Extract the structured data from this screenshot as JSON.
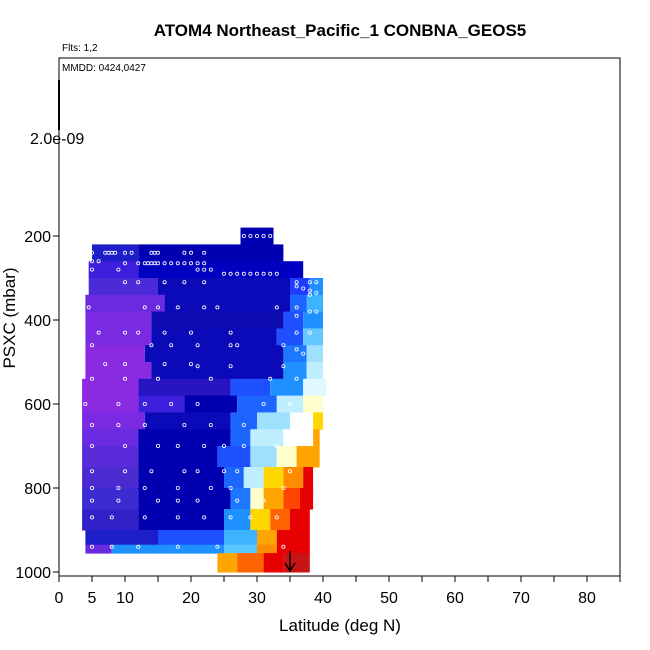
{
  "chart_data": {
    "type": "heatmap",
    "title": "ATOM4 Northeast_Pacific_1 CONBNA_GEOS5",
    "flights_label": "Flts: 1,2",
    "dates_label": "MMDD: 0424,0427",
    "scale_label": "2.0e-09",
    "xlabel": "Latitude (deg N)",
    "ylabel": "PSXC (mbar)",
    "xlim": [
      0,
      85
    ],
    "ylim": [
      1000,
      0
    ],
    "x_ticks": [
      0,
      5,
      10,
      20,
      30,
      40,
      50,
      60,
      70,
      80
    ],
    "y_ticks": [
      200,
      400,
      600,
      800,
      1000
    ],
    "colors": {
      "violet": "#8a2be2",
      "dark_blue": "#0000b0",
      "blue": "#1e3cff",
      "light_blue": "#1e90ff",
      "cyan": "#bfefff",
      "white": "#ffffff",
      "yellow": "#ffd700",
      "orange": "#ff8c00",
      "red": "#e60000",
      "dark_red": "#a01010"
    },
    "rows": [
      {
        "p": [
          180,
          220
        ],
        "segs": [
          [
            27.5,
            32.5,
            "#0000b0"
          ]
        ]
      },
      {
        "p": [
          220,
          260
        ],
        "segs": [
          [
            5,
            12,
            "#1e1ec8"
          ],
          [
            12,
            34,
            "#0000b0"
          ]
        ]
      },
      {
        "p": [
          260,
          300
        ],
        "segs": [
          [
            4.5,
            12,
            "#3c1edc"
          ],
          [
            12,
            37,
            "#0000c0"
          ]
        ]
      },
      {
        "p": [
          300,
          340
        ],
        "segs": [
          [
            4.5,
            15,
            "#4b2bd8"
          ],
          [
            15,
            35,
            "#0a0ab8"
          ],
          [
            35,
            38,
            "#1e3cff"
          ],
          [
            38,
            40,
            "#1e90ff"
          ]
        ]
      },
      {
        "p": [
          340,
          380
        ],
        "segs": [
          [
            4,
            16,
            "#6a2be0"
          ],
          [
            16,
            35,
            "#0a0ab8"
          ],
          [
            35,
            37.5,
            "#1e64ff"
          ],
          [
            37.5,
            40,
            "#3cb4ff"
          ]
        ]
      },
      {
        "p": [
          380,
          420
        ],
        "segs": [
          [
            4,
            14,
            "#7a2be2"
          ],
          [
            14,
            34,
            "#0c0cb0"
          ],
          [
            34,
            37,
            "#1e50ff"
          ],
          [
            37,
            40,
            "#1e90ff"
          ]
        ]
      },
      {
        "p": [
          420,
          460
        ],
        "segs": [
          [
            4,
            14,
            "#7a2be2"
          ],
          [
            14,
            33,
            "#0a0ab8"
          ],
          [
            33,
            37,
            "#1e50ff"
          ],
          [
            37,
            40,
            "#64c8ff"
          ]
        ]
      },
      {
        "p": [
          460,
          500
        ],
        "segs": [
          [
            4,
            13,
            "#8a2be2"
          ],
          [
            13,
            34,
            "#0a0ab8"
          ],
          [
            34,
            37.5,
            "#1e78ff"
          ],
          [
            37.5,
            40,
            "#a0e0ff"
          ]
        ]
      },
      {
        "p": [
          500,
          540
        ],
        "segs": [
          [
            4,
            14,
            "#8a2be2"
          ],
          [
            14,
            34,
            "#0a0ab8"
          ],
          [
            34,
            37.5,
            "#1e90ff"
          ],
          [
            37.5,
            40,
            "#bfefff"
          ]
        ]
      },
      {
        "p": [
          540,
          580
        ],
        "segs": [
          [
            3.5,
            12,
            "#8a2be2"
          ],
          [
            12,
            26,
            "#2814c0"
          ],
          [
            26,
            32,
            "#1e50ff"
          ],
          [
            32,
            37,
            "#1e90ff"
          ],
          [
            37,
            40.5,
            "#e0f8ff"
          ]
        ]
      },
      {
        "p": [
          580,
          620
        ],
        "segs": [
          [
            3.5,
            12,
            "#8a2be2"
          ],
          [
            12,
            19,
            "#3c1edc"
          ],
          [
            19,
            27,
            "#0000b0"
          ],
          [
            27,
            33,
            "#1e64ff"
          ],
          [
            33,
            37,
            "#bfefff"
          ],
          [
            37,
            40,
            "#ffffcc"
          ]
        ]
      },
      {
        "p": [
          620,
          660
        ],
        "segs": [
          [
            3.5,
            13,
            "#7a2be2"
          ],
          [
            13,
            26,
            "#0a0ab8"
          ],
          [
            26,
            30,
            "#1e64ff"
          ],
          [
            30,
            35,
            "#a0e0ff"
          ],
          [
            35,
            38.5,
            "#ffffff"
          ],
          [
            38.5,
            40,
            "#ffd700"
          ]
        ]
      },
      {
        "p": [
          660,
          700
        ],
        "segs": [
          [
            3.5,
            12,
            "#6a2be0"
          ],
          [
            12,
            26,
            "#0000b0"
          ],
          [
            26,
            29,
            "#1e64ff"
          ],
          [
            29,
            34,
            "#bfefff"
          ],
          [
            34,
            38.5,
            "#ffffff"
          ],
          [
            38.5,
            39.5,
            "#ffa500"
          ]
        ]
      },
      {
        "p": [
          700,
          750
        ],
        "segs": [
          [
            3.5,
            12,
            "#5a2bd8"
          ],
          [
            12,
            24,
            "#0000b0"
          ],
          [
            24,
            29,
            "#1e50ff"
          ],
          [
            29,
            33,
            "#a0e0ff"
          ],
          [
            33,
            36,
            "#ffffcc"
          ],
          [
            36,
            39.5,
            "#ffa500"
          ]
        ]
      },
      {
        "p": [
          750,
          800
        ],
        "segs": [
          [
            3.5,
            12,
            "#4a2bd0"
          ],
          [
            12,
            25,
            "#0000b0"
          ],
          [
            25,
            28,
            "#1e64ff"
          ],
          [
            28,
            31,
            "#bfefff"
          ],
          [
            31,
            34,
            "#ffd700"
          ],
          [
            34,
            37,
            "#ff8c00"
          ],
          [
            37,
            38.5,
            "#e60000"
          ]
        ]
      },
      {
        "p": [
          800,
          850
        ],
        "segs": [
          [
            3.5,
            12,
            "#3c2bd0"
          ],
          [
            12,
            26,
            "#0000b0"
          ],
          [
            26,
            29,
            "#1e78ff"
          ],
          [
            29,
            31,
            "#ffffcc"
          ],
          [
            31,
            34,
            "#ffa500"
          ],
          [
            34,
            36.5,
            "#ff4500"
          ],
          [
            36.5,
            38.5,
            "#e60000"
          ]
        ]
      },
      {
        "p": [
          850,
          900
        ],
        "segs": [
          [
            3.5,
            12,
            "#3220c8"
          ],
          [
            12,
            25,
            "#0000b0"
          ],
          [
            25,
            29,
            "#1e90ff"
          ],
          [
            29,
            32,
            "#ffd700"
          ],
          [
            32,
            35,
            "#ff6400"
          ],
          [
            35,
            38,
            "#e60000"
          ]
        ]
      },
      {
        "p": [
          900,
          935
        ],
        "segs": [
          [
            4,
            15,
            "#1e1ec8"
          ],
          [
            15,
            25,
            "#1e50ff"
          ],
          [
            25,
            30,
            "#3cb4ff"
          ],
          [
            30,
            33,
            "#ffa500"
          ],
          [
            33,
            38,
            "#e60000"
          ]
        ]
      },
      {
        "p": [
          935,
          955
        ],
        "segs": [
          [
            4,
            8,
            "#6a2be0"
          ],
          [
            8,
            25,
            "#1e90ff"
          ],
          [
            25,
            30,
            "#5ac8ff"
          ],
          [
            30,
            33,
            "#ff8c00"
          ],
          [
            33,
            38,
            "#e60000"
          ]
        ]
      },
      {
        "p": [
          955,
          1000
        ],
        "segs": [
          [
            24,
            27,
            "#ffa500"
          ],
          [
            27,
            31,
            "#ff6400"
          ],
          [
            31,
            34,
            "#e60000"
          ],
          [
            34,
            38,
            "#c81414"
          ]
        ]
      }
    ],
    "points": [
      [
        28,
        200
      ],
      [
        29,
        200
      ],
      [
        30,
        200
      ],
      [
        31,
        200
      ],
      [
        32,
        200
      ],
      [
        27,
        215
      ],
      [
        5,
        240
      ],
      [
        7,
        240
      ],
      [
        7.5,
        240
      ],
      [
        8,
        240
      ],
      [
        8.5,
        240
      ],
      [
        10,
        240
      ],
      [
        11,
        240
      ],
      [
        14,
        240
      ],
      [
        14.5,
        240
      ],
      [
        15,
        240
      ],
      [
        19,
        240
      ],
      [
        20,
        240
      ],
      [
        22,
        240
      ],
      [
        5,
        260
      ],
      [
        6,
        260
      ],
      [
        10,
        265
      ],
      [
        12,
        265
      ],
      [
        13,
        265
      ],
      [
        13.5,
        265
      ],
      [
        14,
        265
      ],
      [
        14.5,
        265
      ],
      [
        15,
        265
      ],
      [
        16,
        265
      ],
      [
        17,
        265
      ],
      [
        18,
        265
      ],
      [
        19,
        265
      ],
      [
        20,
        265
      ],
      [
        21,
        265
      ],
      [
        22,
        265
      ],
      [
        5,
        280
      ],
      [
        9,
        280
      ],
      [
        21,
        280
      ],
      [
        22,
        280
      ],
      [
        23,
        280
      ],
      [
        25,
        290
      ],
      [
        26,
        290
      ],
      [
        27,
        290
      ],
      [
        28,
        290
      ],
      [
        29,
        290
      ],
      [
        30,
        290
      ],
      [
        31,
        290
      ],
      [
        32,
        290
      ],
      [
        33,
        290
      ],
      [
        10,
        310
      ],
      [
        12,
        310
      ],
      [
        16,
        310
      ],
      [
        19,
        310
      ],
      [
        22,
        310
      ],
      [
        36,
        310
      ],
      [
        38,
        310
      ],
      [
        39,
        310
      ],
      [
        36,
        320
      ],
      [
        37,
        325
      ],
      [
        38,
        330
      ],
      [
        39,
        335
      ],
      [
        38,
        340
      ],
      [
        4.5,
        370
      ],
      [
        13,
        370
      ],
      [
        15,
        370
      ],
      [
        18,
        370
      ],
      [
        22,
        370
      ],
      [
        24,
        370
      ],
      [
        33,
        370
      ],
      [
        36,
        370
      ],
      [
        38,
        380
      ],
      [
        39,
        380
      ],
      [
        36,
        390
      ],
      [
        6,
        430
      ],
      [
        10,
        430
      ],
      [
        12,
        430
      ],
      [
        16,
        430
      ],
      [
        20,
        430
      ],
      [
        26,
        430
      ],
      [
        36,
        430
      ],
      [
        38,
        430
      ],
      [
        5,
        460
      ],
      [
        14,
        460
      ],
      [
        17,
        460
      ],
      [
        21,
        460
      ],
      [
        26,
        460
      ],
      [
        27,
        460
      ],
      [
        34,
        460
      ],
      [
        36,
        470
      ],
      [
        37,
        480
      ],
      [
        7,
        505
      ],
      [
        10,
        505
      ],
      [
        16,
        505
      ],
      [
        20,
        505
      ],
      [
        21,
        510
      ],
      [
        26,
        510
      ],
      [
        34,
        510
      ],
      [
        5,
        540
      ],
      [
        10,
        540
      ],
      [
        15,
        540
      ],
      [
        23,
        540
      ],
      [
        32,
        540
      ],
      [
        36,
        540
      ],
      [
        4,
        600
      ],
      [
        9,
        600
      ],
      [
        13,
        600
      ],
      [
        17,
        600
      ],
      [
        21,
        600
      ],
      [
        31,
        600
      ],
      [
        35,
        600
      ],
      [
        5,
        650
      ],
      [
        9,
        650
      ],
      [
        13,
        650
      ],
      [
        19,
        650
      ],
      [
        23,
        650
      ],
      [
        28,
        650
      ],
      [
        5,
        700
      ],
      [
        10,
        700
      ],
      [
        15,
        700
      ],
      [
        18,
        700
      ],
      [
        22,
        700
      ],
      [
        25,
        700
      ],
      [
        28,
        700
      ],
      [
        33,
        700
      ],
      [
        5,
        760
      ],
      [
        10,
        760
      ],
      [
        14,
        760
      ],
      [
        19,
        760
      ],
      [
        21,
        760
      ],
      [
        25,
        760
      ],
      [
        27,
        760
      ],
      [
        35,
        760
      ],
      [
        5,
        800
      ],
      [
        9,
        800
      ],
      [
        13,
        800
      ],
      [
        18,
        800
      ],
      [
        23,
        800
      ],
      [
        26,
        800
      ],
      [
        34,
        800
      ],
      [
        5,
        830
      ],
      [
        9,
        830
      ],
      [
        15,
        830
      ],
      [
        18,
        830
      ],
      [
        21,
        830
      ],
      [
        27,
        830
      ],
      [
        31,
        830
      ],
      [
        5,
        870
      ],
      [
        8,
        870
      ],
      [
        13,
        870
      ],
      [
        18,
        870
      ],
      [
        22,
        870
      ],
      [
        26,
        870
      ],
      [
        29,
        870
      ],
      [
        33,
        870
      ],
      [
        5,
        940
      ],
      [
        8,
        940
      ],
      [
        12,
        940
      ],
      [
        18,
        940
      ],
      [
        24,
        940
      ],
      [
        34,
        940
      ]
    ],
    "arrow": {
      "x": 35,
      "from_p": 950,
      "to_p": 1000
    }
  }
}
